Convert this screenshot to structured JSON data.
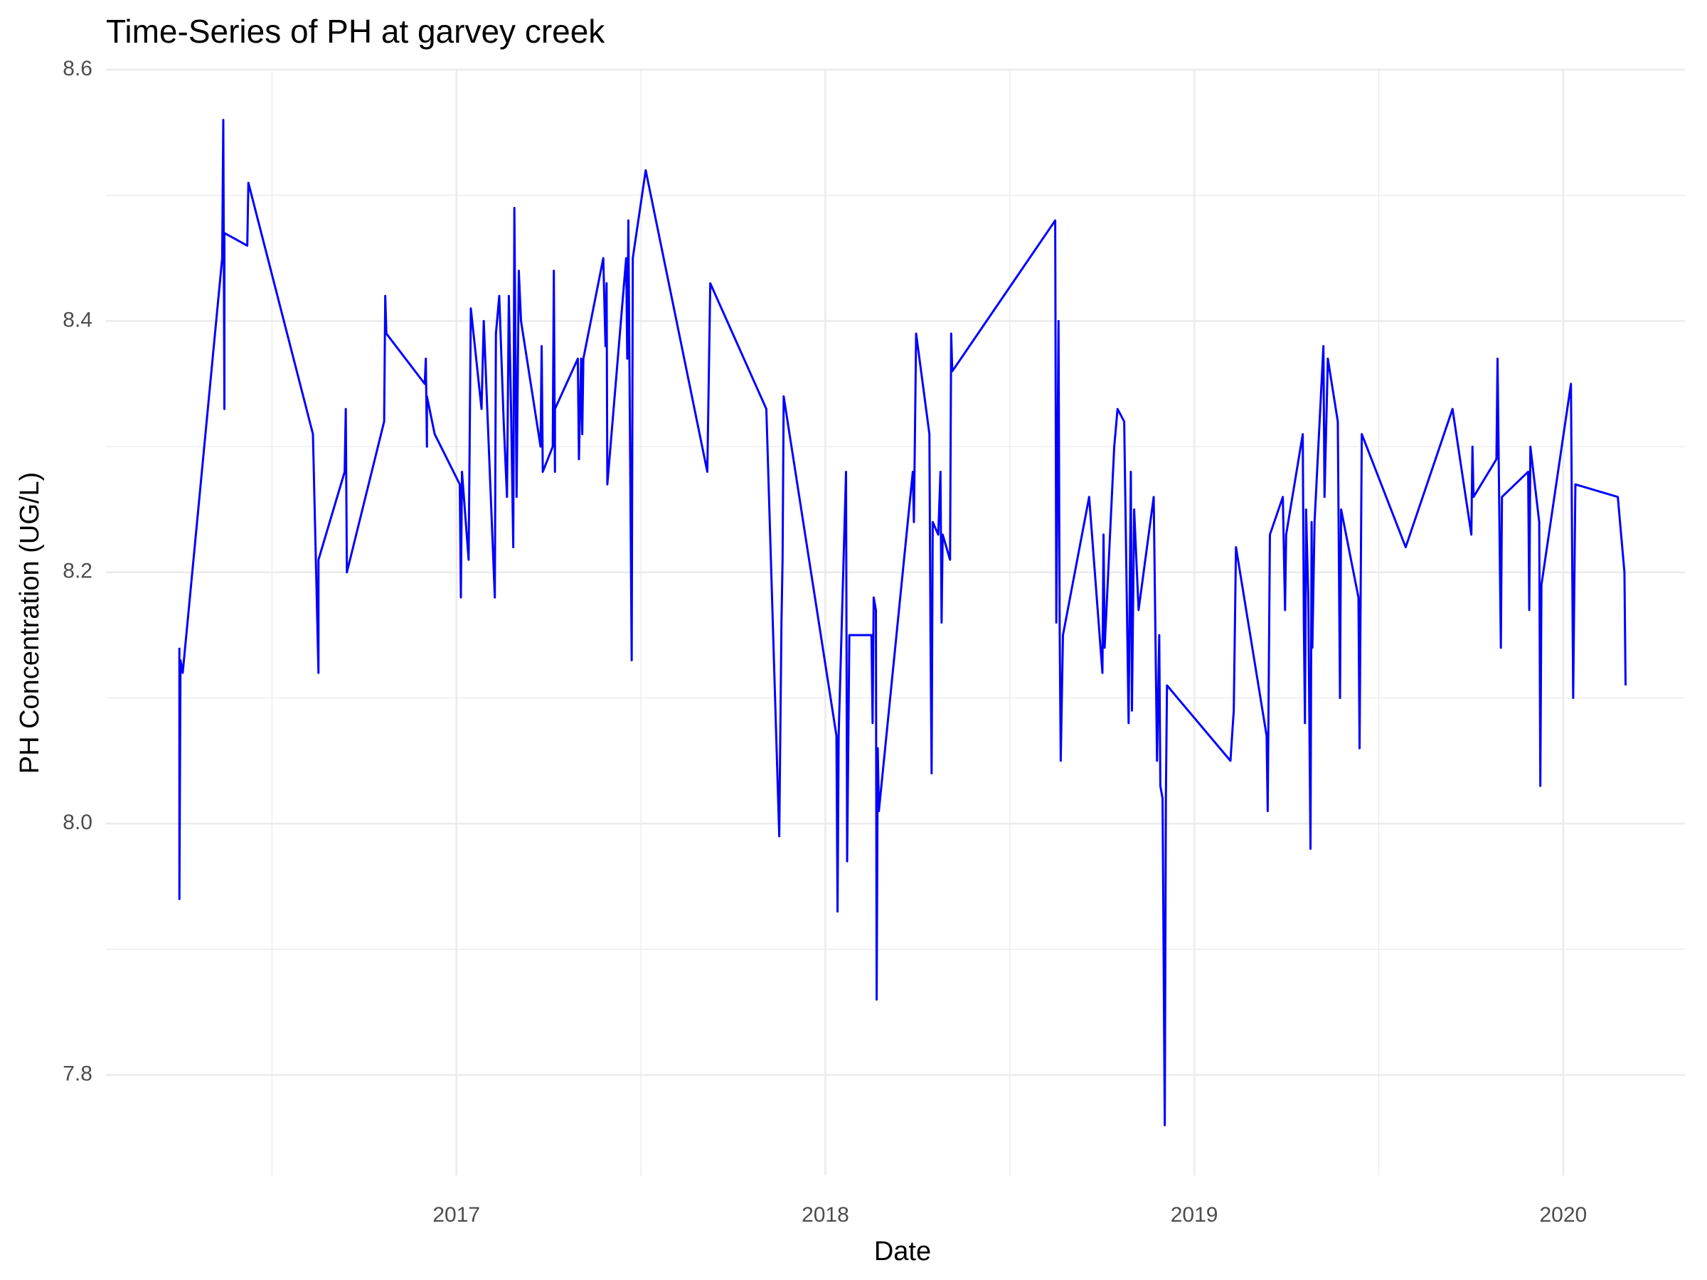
{
  "chart_data": {
    "type": "line",
    "title": "Time-Series of PH at garvey creek",
    "xlabel": "Date",
    "ylabel": "PH Concentration (UG/L)",
    "color": "#0000ff",
    "grid": true,
    "xlim": [
      2016.05,
      2020.33
    ],
    "xticks": [
      2017,
      2018,
      2019,
      2020
    ],
    "xminor": [
      2016.5,
      2017.5,
      2018.5,
      2019.5
    ],
    "ylim": [
      7.72,
      8.6
    ],
    "yticks": [
      7.8,
      8.0,
      8.2,
      8.4,
      8.6
    ],
    "yminor": [
      7.9,
      8.1,
      8.3,
      8.5
    ],
    "x": [
      2016.249,
      2016.249,
      2016.252,
      2016.258,
      2016.365,
      2016.368,
      2016.371,
      2016.371,
      2016.433,
      2016.436,
      2016.611,
      2016.626,
      2016.626,
      2016.697,
      2016.7,
      2016.703,
      2016.804,
      2016.807,
      2016.81,
      2016.914,
      2016.917,
      2016.92,
      2016.92,
      2016.941,
      2017.009,
      2017.012,
      2017.015,
      2017.033,
      2017.039,
      2017.068,
      2017.074,
      2017.104,
      2017.107,
      2017.116,
      2017.128,
      2017.137,
      2017.142,
      2017.148,
      2017.154,
      2017.157,
      2017.163,
      2017.169,
      2017.175,
      2017.228,
      2017.231,
      2017.234,
      2017.261,
      2017.264,
      2017.267,
      2017.267,
      2017.329,
      2017.332,
      2017.338,
      2017.341,
      2017.344,
      2017.398,
      2017.404,
      2017.407,
      2017.409,
      2017.46,
      2017.463,
      2017.466,
      2017.475,
      2017.478,
      2017.513,
      2017.68,
      2017.688,
      2017.84,
      2017.875,
      2017.881,
      2017.884,
      2017.887,
      2018.03,
      2018.033,
      2018.036,
      2018.056,
      2018.059,
      2018.065,
      2018.125,
      2018.128,
      2018.131,
      2018.137,
      2018.139,
      2018.142,
      2018.145,
      2018.237,
      2018.24,
      2018.246,
      2018.282,
      2018.285,
      2018.288,
      2018.291,
      2018.306,
      2018.312,
      2018.315,
      2018.318,
      2018.338,
      2018.341,
      2018.344,
      2018.623,
      2018.626,
      2018.632,
      2018.635,
      2018.638,
      2018.644,
      2018.715,
      2018.751,
      2018.754,
      2018.757,
      2018.783,
      2018.792,
      2018.81,
      2018.822,
      2018.828,
      2018.831,
      2018.837,
      2018.849,
      2018.89,
      2018.899,
      2018.905,
      2018.908,
      2018.914,
      2018.92,
      2018.923,
      2018.926,
      2019.098,
      2019.107,
      2019.113,
      2019.196,
      2019.199,
      2019.205,
      2019.24,
      2019.246,
      2019.249,
      2019.294,
      2019.297,
      2019.3,
      2019.303,
      2019.309,
      2019.315,
      2019.318,
      2019.32,
      2019.326,
      2019.35,
      2019.353,
      2019.362,
      2019.389,
      2019.395,
      2019.398,
      2019.445,
      2019.448,
      2019.454,
      2019.573,
      2019.7,
      2019.751,
      2019.754,
      2019.757,
      2019.819,
      2019.822,
      2019.831,
      2019.834,
      2019.905,
      2019.908,
      2019.911,
      2019.935,
      2019.938,
      2019.941,
      2020.021,
      2020.027,
      2020.033,
      2020.148,
      2020.166,
      2020.169
    ],
    "values": [
      8.14,
      7.94,
      8.13,
      8.12,
      8.45,
      8.56,
      8.33,
      8.47,
      8.46,
      8.51,
      8.31,
      8.12,
      8.21,
      8.28,
      8.33,
      8.2,
      8.32,
      8.42,
      8.39,
      8.35,
      8.37,
      8.3,
      8.34,
      8.31,
      8.27,
      8.18,
      8.28,
      8.21,
      8.41,
      8.33,
      8.4,
      8.18,
      8.39,
      8.42,
      8.32,
      8.26,
      8.42,
      8.33,
      8.22,
      8.49,
      8.26,
      8.44,
      8.4,
      8.3,
      8.38,
      8.28,
      8.3,
      8.44,
      8.28,
      8.33,
      8.37,
      8.29,
      8.37,
      8.31,
      8.37,
      8.45,
      8.38,
      8.43,
      8.27,
      8.45,
      8.37,
      8.48,
      8.13,
      8.45,
      8.52,
      8.28,
      8.43,
      8.33,
      7.99,
      8.16,
      8.21,
      8.34,
      8.07,
      7.93,
      8.07,
      8.28,
      7.97,
      8.15,
      8.15,
      8.08,
      8.18,
      8.17,
      7.86,
      8.06,
      8.01,
      8.28,
      8.24,
      8.39,
      8.31,
      8.15,
      8.04,
      8.24,
      8.23,
      8.28,
      8.16,
      8.23,
      8.21,
      8.39,
      8.36,
      8.48,
      8.16,
      8.4,
      8.16,
      8.05,
      8.15,
      8.26,
      8.12,
      8.23,
      8.14,
      8.3,
      8.33,
      8.32,
      8.08,
      8.28,
      8.09,
      8.25,
      8.17,
      8.26,
      8.05,
      8.15,
      8.03,
      8.02,
      7.76,
      8.02,
      8.11,
      8.05,
      8.09,
      8.22,
      8.07,
      8.01,
      8.23,
      8.26,
      8.17,
      8.23,
      8.31,
      8.16,
      8.08,
      8.25,
      8.18,
      7.98,
      8.24,
      8.14,
      8.24,
      8.38,
      8.26,
      8.37,
      8.32,
      8.1,
      8.25,
      8.18,
      8.06,
      8.31,
      8.22,
      8.33,
      8.23,
      8.3,
      8.26,
      8.29,
      8.37,
      8.14,
      8.26,
      8.28,
      8.17,
      8.3,
      8.24,
      8.03,
      8.19,
      8.35,
      8.1,
      8.27,
      8.26,
      8.2,
      8.11
    ]
  }
}
